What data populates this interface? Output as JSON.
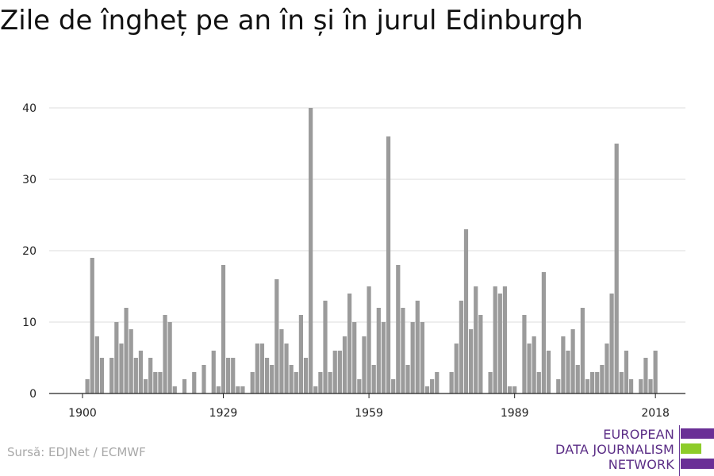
{
  "title": "Zile de îngheț pe an în și în jurul Edinburgh",
  "source": "Sursă: EDJNet / ECMWF",
  "logo": {
    "line1": "EUROPEAN",
    "line2": "DATA JOURNALISM",
    "line3": "NETWORK",
    "colors": {
      "purple": "#6a2f96",
      "green": "#8dcc2a"
    }
  },
  "colors": {
    "bar": "#9b9b9b",
    "grid": "#dddddd",
    "axis": "#222222"
  },
  "chart_data": {
    "type": "bar",
    "title": "Zile de îngheț pe an în și în jurul Edinburgh",
    "xlabel": "",
    "ylabel": "",
    "x": [
      1900,
      1901,
      1902,
      1903,
      1904,
      1905,
      1906,
      1907,
      1908,
      1909,
      1910,
      1911,
      1912,
      1913,
      1914,
      1915,
      1916,
      1917,
      1918,
      1919,
      1920,
      1921,
      1922,
      1923,
      1924,
      1925,
      1926,
      1927,
      1928,
      1929,
      1930,
      1931,
      1932,
      1933,
      1934,
      1935,
      1936,
      1937,
      1938,
      1939,
      1940,
      1941,
      1942,
      1943,
      1944,
      1945,
      1946,
      1947,
      1948,
      1949,
      1950,
      1951,
      1952,
      1953,
      1954,
      1955,
      1956,
      1957,
      1958,
      1959,
      1960,
      1961,
      1962,
      1963,
      1964,
      1965,
      1966,
      1967,
      1968,
      1969,
      1970,
      1971,
      1972,
      1973,
      1974,
      1975,
      1976,
      1977,
      1978,
      1979,
      1980,
      1981,
      1982,
      1983,
      1984,
      1985,
      1986,
      1987,
      1988,
      1989,
      1990,
      1991,
      1992,
      1993,
      1994,
      1995,
      1996,
      1997,
      1998,
      1999,
      2000,
      2001,
      2002,
      2003,
      2004,
      2005,
      2006,
      2007,
      2008,
      2009,
      2010,
      2011,
      2012,
      2013,
      2014,
      2015,
      2016,
      2017,
      2018
    ],
    "values": [
      0,
      2,
      19,
      8,
      5,
      0,
      5,
      10,
      7,
      12,
      9,
      5,
      6,
      2,
      5,
      3,
      3,
      11,
      10,
      1,
      0,
      2,
      0,
      3,
      0,
      4,
      0,
      6,
      1,
      18,
      5,
      5,
      1,
      1,
      0,
      3,
      7,
      7,
      5,
      4,
      16,
      9,
      7,
      4,
      3,
      11,
      5,
      40,
      1,
      3,
      13,
      3,
      6,
      6,
      8,
      14,
      10,
      2,
      8,
      15,
      4,
      12,
      10,
      36,
      2,
      18,
      12,
      4,
      10,
      13,
      10,
      1,
      2,
      3,
      0,
      0,
      3,
      7,
      13,
      23,
      9,
      15,
      11,
      0,
      3,
      15,
      14,
      15,
      1,
      1,
      0,
      11,
      7,
      8,
      3,
      17,
      6,
      0,
      2,
      8,
      6,
      9,
      4,
      12,
      2,
      3,
      3,
      4,
      7,
      14,
      35,
      3,
      6,
      2,
      0,
      2,
      5,
      2,
      6
    ],
    "xticks": [
      1900,
      1929,
      1959,
      1989,
      2018
    ],
    "xtick_labels": [
      "1900",
      "1929",
      "1959",
      "1989",
      "2018"
    ],
    "yticks": [
      0,
      10,
      20,
      30,
      40
    ],
    "ytick_labels": [
      "0",
      "10",
      "20",
      "30",
      "40"
    ],
    "xlim": [
      1900,
      2018
    ],
    "ylim": [
      0,
      40
    ],
    "grid": true,
    "legend": "none"
  }
}
